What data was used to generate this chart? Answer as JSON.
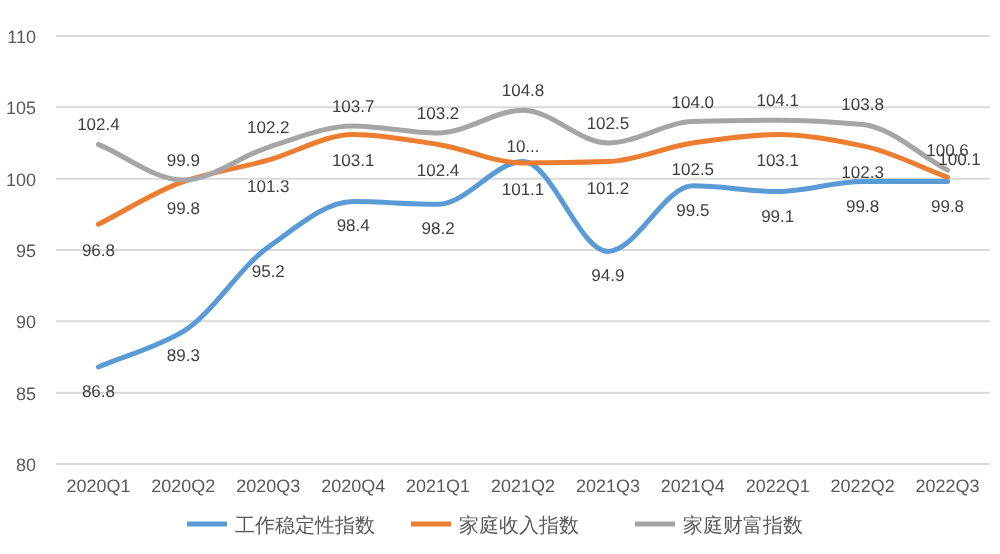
{
  "chart_data": {
    "type": "line",
    "categories": [
      "2020Q1",
      "2020Q2",
      "2020Q3",
      "2020Q4",
      "2021Q1",
      "2021Q2",
      "2021Q3",
      "2021Q4",
      "2022Q1",
      "2022Q2",
      "2022Q3"
    ],
    "ylim": [
      80,
      110
    ],
    "yticks": [
      80,
      85,
      90,
      95,
      100,
      105,
      110
    ],
    "grid": "y",
    "legend": "bottom",
    "marker": "none",
    "line_style": "solid",
    "series": [
      {
        "name": "工作稳定性指数",
        "color": "#5b9bd5",
        "values": [
          86.8,
          89.3,
          95.2,
          98.4,
          98.2,
          101.2,
          94.9,
          99.5,
          99.1,
          99.8,
          99.8
        ],
        "value_labels": [
          "86.8",
          "89.3",
          "95.2",
          "98.4",
          "98.2",
          "10...",
          "94.9",
          "99.5",
          "99.1",
          "99.8",
          "99.8"
        ]
      },
      {
        "name": "家庭收入指数",
        "color": "#ed7d31",
        "values": [
          96.8,
          99.8,
          101.3,
          103.1,
          102.4,
          101.1,
          101.2,
          102.5,
          103.1,
          102.3,
          100.1
        ],
        "value_labels": [
          "96.8",
          "99.8",
          "101.3",
          "103.1",
          "102.4",
          "101.1",
          "101.2",
          "102.5",
          "103.1",
          "102.3",
          "100.1"
        ]
      },
      {
        "name": "家庭财富指数",
        "color": "#a5a5a5",
        "values": [
          102.4,
          99.9,
          102.2,
          103.7,
          103.2,
          104.8,
          102.5,
          104.0,
          104.1,
          103.8,
          100.6
        ],
        "value_labels": [
          "102.4",
          "99.9",
          "102.2",
          "103.7",
          "103.2",
          "104.8",
          "102.5",
          "104.0",
          "104.1",
          "103.8",
          "100.6"
        ]
      }
    ]
  }
}
